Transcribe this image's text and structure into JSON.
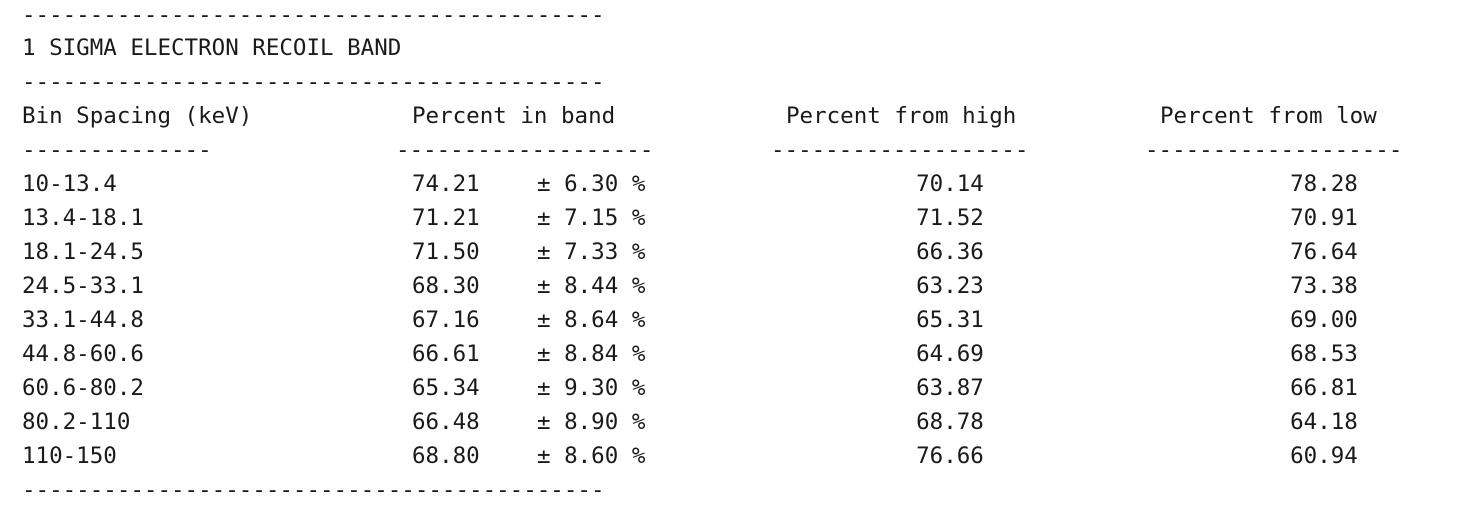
{
  "rule_long": "-------------------------------------------",
  "title": "1 SIGMA ELECTRON RECOIL BAND",
  "headers": {
    "bin": "Bin Spacing (keV)",
    "percent_in_band": "Percent in band",
    "percent_from_high": "Percent from high",
    "percent_from_low": "Percent from low"
  },
  "underlines": {
    "bin": "--------------",
    "percent_in_band": "-------------------",
    "percent_from_high": "-------------------",
    "percent_from_low": "-------------------"
  },
  "rows": [
    {
      "bin": "10-13.4",
      "in_band": "74.21",
      "err": "± 6.30 %",
      "high": "70.14",
      "low": "78.28"
    },
    {
      "bin": "13.4-18.1",
      "in_band": "71.21",
      "err": "± 7.15 %",
      "high": "71.52",
      "low": "70.91"
    },
    {
      "bin": "18.1-24.5",
      "in_band": "71.50",
      "err": "± 7.33 %",
      "high": "66.36",
      "low": "76.64"
    },
    {
      "bin": "24.5-33.1",
      "in_band": "68.30",
      "err": "± 8.44 %",
      "high": "63.23",
      "low": "73.38"
    },
    {
      "bin": "33.1-44.8",
      "in_band": "67.16",
      "err": "± 8.64 %",
      "high": "65.31",
      "low": "69.00"
    },
    {
      "bin": "44.8-60.6",
      "in_band": "66.61",
      "err": "± 8.84 %",
      "high": "64.69",
      "low": "68.53"
    },
    {
      "bin": "60.6-80.2",
      "in_band": "65.34",
      "err": "± 9.30 %",
      "high": "63.87",
      "low": "66.81"
    },
    {
      "bin": "80.2-110",
      "in_band": "66.48",
      "err": "± 8.90 %",
      "high": "68.78",
      "low": "64.18"
    },
    {
      "bin": "110-150",
      "in_band": "68.80",
      "err": "± 8.60 %",
      "high": "76.66",
      "low": "60.94"
    }
  ]
}
